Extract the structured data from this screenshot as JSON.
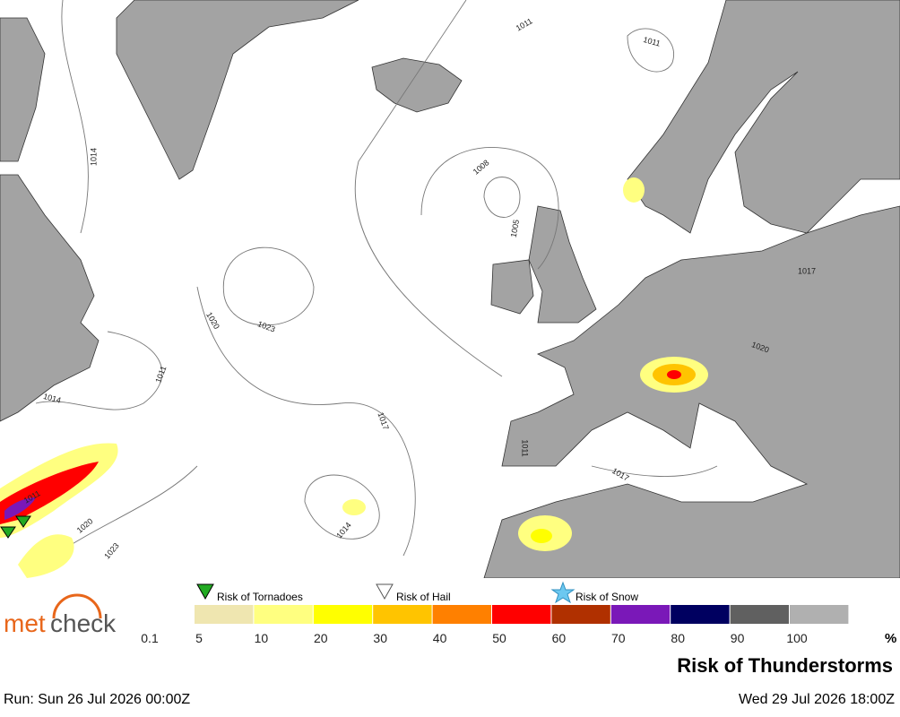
{
  "map": {
    "isobar_labels": [
      1011,
      1011,
      1014,
      1008,
      1005,
      1020,
      1023,
      1011,
      1014,
      1017,
      1011,
      1017,
      1020,
      1017,
      1014,
      1020,
      1023,
      1011
    ]
  },
  "legend": {
    "symbols": [
      "Risk of Tornadoes",
      "Risk of Hail",
      "Risk of Snow"
    ],
    "scale_labels": [
      0.1,
      5,
      10,
      20,
      30,
      40,
      50,
      60,
      70,
      80,
      90,
      100
    ],
    "unit": "%",
    "colors": [
      "#efe6b0",
      "#ffff80",
      "#ffff00",
      "#ffc400",
      "#ff8000",
      "#ff0000",
      "#b03000",
      "#7a18b8",
      "#000060",
      "#606060",
      "#b0b0b0"
    ]
  },
  "logo": {
    "part1": "met",
    "part2": "check"
  },
  "title": "Risk of Thunderstorms",
  "run": "Run: Sun 26 Jul 2026 00:00Z",
  "valid": "Wed 29 Jul 2026 18:00Z"
}
